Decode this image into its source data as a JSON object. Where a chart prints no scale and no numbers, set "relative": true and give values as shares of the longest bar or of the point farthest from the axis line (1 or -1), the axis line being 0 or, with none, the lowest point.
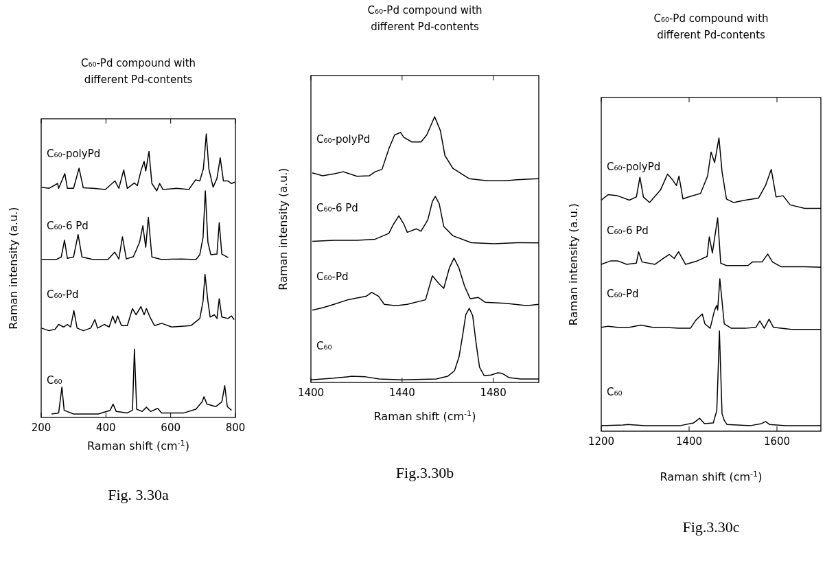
{
  "chart_data": [
    {
      "type": "line",
      "title": "C₆₀-Pd compound with\ndifferent Pd-contents",
      "xlabel": "Raman shift (cm$^{-1}$)",
      "ylabel": "Raman intensity (a.u.)",
      "relative": true,
      "xlim": [
        200,
        800
      ],
      "xticks": [
        200,
        400,
        600,
        800
      ],
      "annotations": [
        "Fig. 3.30a"
      ],
      "series": [
        {
          "name": "C₆₀-polyPd",
          "color": "#000000",
          "x": [
            201,
            224,
            251,
            254,
            273,
            281,
            300,
            317,
            330,
            360,
            398,
            428,
            440,
            455,
            466,
            488,
            497,
            508,
            518,
            523,
            533,
            542,
            557,
            566,
            576,
            618,
            656,
            677,
            690,
            701,
            710,
            718,
            731,
            743,
            753,
            763,
            777,
            788,
            798
          ],
          "values": [
            0.812,
            0.808,
            0.825,
            0.808,
            0.86,
            0.808,
            0.808,
            0.879,
            0.81,
            0.808,
            0.804,
            0.834,
            0.808,
            0.873,
            0.808,
            0.827,
            0.817,
            0.869,
            0.903,
            0.869,
            0.938,
            0.825,
            0.799,
            0.825,
            0.804,
            0.808,
            0.804,
            0.838,
            0.834,
            0.877,
            1.0,
            0.877,
            0.812,
            0.843,
            0.916,
            0.834,
            0.834,
            0.825,
            0.83
          ]
        },
        {
          "name": "C₆₀-6 Pd",
          "color": "#000000",
          "x": [
            201,
            247,
            262,
            272,
            281,
            300,
            314,
            326,
            360,
            406,
            427,
            440,
            451,
            463,
            485,
            504,
            514,
            523,
            531,
            542,
            572,
            633,
            678,
            690,
            700,
            707,
            715,
            724,
            743,
            750,
            758,
            778
          ],
          "values": [
            0.557,
            0.557,
            0.566,
            0.625,
            0.561,
            0.566,
            0.645,
            0.566,
            0.557,
            0.557,
            0.583,
            0.559,
            0.637,
            0.559,
            0.567,
            0.618,
            0.676,
            0.6,
            0.706,
            0.566,
            0.557,
            0.559,
            0.557,
            0.574,
            0.635,
            0.799,
            0.618,
            0.574,
            0.576,
            0.687,
            0.576,
            0.564
          ]
        },
        {
          "name": "C₆₀-Pd",
          "color": "#000000",
          "x": [
            201,
            224,
            243,
            254,
            269,
            281,
            291,
            301,
            311,
            330,
            353,
            366,
            374,
            395,
            410,
            421,
            429,
            436,
            448,
            466,
            482,
            493,
            508,
            518,
            525,
            536,
            550,
            572,
            603,
            663,
            690,
            700,
            706,
            715,
            722,
            735,
            743,
            750,
            758,
            777,
            788,
            796
          ],
          "values": [
            0.315,
            0.306,
            0.311,
            0.328,
            0.319,
            0.328,
            0.319,
            0.377,
            0.315,
            0.306,
            0.315,
            0.345,
            0.315,
            0.328,
            0.319,
            0.358,
            0.332,
            0.358,
            0.324,
            0.324,
            0.384,
            0.362,
            0.391,
            0.362,
            0.384,
            0.354,
            0.324,
            0.332,
            0.319,
            0.324,
            0.349,
            0.41,
            0.505,
            0.41,
            0.354,
            0.362,
            0.349,
            0.419,
            0.354,
            0.349,
            0.358,
            0.345
          ]
        },
        {
          "name": "C₆₀",
          "color": "#000000",
          "x": [
            232,
            254,
            264,
            271,
            300,
            376,
            413,
            422,
            432,
            466,
            482,
            488,
            495,
            512,
            525,
            538,
            560,
            572,
            641,
            678,
            697,
            703,
            712,
            739,
            758,
            767,
            775,
            788
          ],
          "values": [
            0.012,
            0.016,
            0.107,
            0.025,
            0.012,
            0.012,
            0.025,
            0.047,
            0.021,
            0.016,
            0.025,
            0.241,
            0.029,
            0.021,
            0.036,
            0.021,
            0.032,
            0.016,
            0.016,
            0.029,
            0.055,
            0.073,
            0.047,
            0.038,
            0.055,
            0.112,
            0.038,
            0.025
          ]
        }
      ]
    },
    {
      "type": "line",
      "title": "C₆₀-Pd compound with\ndifferent Pd-contents",
      "xlabel": "Raman shift (cm$^{-1}$)",
      "ylabel": "Raman intensity (a.u.)",
      "relative": true,
      "xlim": [
        1400,
        1500
      ],
      "xticks": [
        1400,
        1440,
        1480
      ],
      "annotations": [
        "Fig.3.30b"
      ],
      "series": [
        {
          "name": "C₆₀-polyPd",
          "color": "#000000",
          "x": [
            1400.6,
            1405.1,
            1410.1,
            1414.2,
            1420.2,
            1425.7,
            1428.2,
            1431.2,
            1434.2,
            1436.7,
            1439.3,
            1440.8,
            1444.3,
            1448.3,
            1450.8,
            1454.3,
            1456.8,
            1458.8,
            1462.3,
            1469.4,
            1477.4,
            1485.4,
            1490.5,
            1500
          ],
          "values": [
            0.789,
            0.778,
            0.785,
            0.793,
            0.776,
            0.778,
            0.793,
            0.802,
            0.879,
            0.931,
            0.941,
            0.922,
            0.905,
            0.905,
            0.931,
            1.0,
            0.948,
            0.854,
            0.806,
            0.767,
            0.759,
            0.759,
            0.763,
            0.767
          ]
        },
        {
          "name": "C₆₀-6 Pd",
          "color": "#000000",
          "x": [
            1400.6,
            1410.1,
            1420.2,
            1428.2,
            1434.2,
            1436.2,
            1438.6,
            1440.8,
            1442.3,
            1446.3,
            1448.3,
            1451.3,
            1453.3,
            1454.6,
            1456.3,
            1458.3,
            1462.3,
            1470.4,
            1480.4,
            1490.5,
            1500
          ],
          "values": [
            0.531,
            0.535,
            0.535,
            0.539,
            0.561,
            0.595,
            0.627,
            0.595,
            0.565,
            0.578,
            0.569,
            0.612,
            0.681,
            0.7,
            0.673,
            0.587,
            0.552,
            0.526,
            0.522,
            0.526,
            0.525
          ]
        },
        {
          "name": "C₆₀-Pd",
          "color": "#000000",
          "x": [
            1400.6,
            1405.1,
            1410.1,
            1416.2,
            1420.2,
            1424.2,
            1426.7,
            1429.7,
            1432.2,
            1437.2,
            1442.3,
            1450.3,
            1453.3,
            1456.3,
            1458.3,
            1460.8,
            1462.8,
            1464.9,
            1467.4,
            1469.9,
            1473.4,
            1476.4,
            1485.4,
            1494.5,
            1500
          ],
          "values": [
            0.272,
            0.281,
            0.294,
            0.311,
            0.318,
            0.324,
            0.339,
            0.324,
            0.294,
            0.289,
            0.294,
            0.311,
            0.401,
            0.371,
            0.354,
            0.432,
            0.468,
            0.432,
            0.363,
            0.315,
            0.32,
            0.302,
            0.298,
            0.289,
            0.294
          ]
        },
        {
          "name": "C₆₀",
          "color": "#000000",
          "x": [
            1400,
            1410,
            1418,
            1424,
            1430,
            1440,
            1455,
            1460,
            1463,
            1465,
            1466.5,
            1468,
            1469.5,
            1471,
            1472.5,
            1474,
            1476,
            1479,
            1482,
            1484,
            1487,
            1492,
            1500
          ],
          "values": [
            0.01,
            0.016,
            0.023,
            0.021,
            0.013,
            0.01,
            0.013,
            0.023,
            0.044,
            0.096,
            0.173,
            0.256,
            0.279,
            0.251,
            0.147,
            0.057,
            0.026,
            0.028,
            0.036,
            0.034,
            0.018,
            0.013,
            0.013
          ]
        }
      ]
    },
    {
      "type": "line",
      "title": "C₆₀-Pd compound with\ndifferent Pd-contents",
      "xlabel": "Raman shift (cm$^{-1}$)",
      "ylabel": "Raman intensity (a.u.)",
      "relative": true,
      "xlim": [
        1200,
        1700
      ],
      "xticks": [
        1200,
        1400,
        1600
      ],
      "annotations": [
        "Fig.3.30c"
      ],
      "series": [
        {
          "name": "C₆₀-polyPd",
          "color": "#000000",
          "x": [
            1200,
            1216,
            1237,
            1264,
            1280,
            1288,
            1296,
            1310,
            1335,
            1351,
            1362,
            1371,
            1377,
            1386,
            1399,
            1426,
            1442,
            1450,
            1458,
            1468,
            1475,
            1485,
            1501,
            1528,
            1558,
            1574,
            1587,
            1598,
            1614,
            1630,
            1663,
            1689,
            1700
          ],
          "values": [
            0.788,
            0.807,
            0.803,
            0.788,
            0.799,
            0.866,
            0.799,
            0.78,
            0.823,
            0.877,
            0.858,
            0.838,
            0.87,
            0.792,
            0.799,
            0.811,
            0.87,
            0.952,
            0.916,
            1.0,
            0.885,
            0.792,
            0.78,
            0.788,
            0.795,
            0.838,
            0.893,
            0.799,
            0.803,
            0.772,
            0.76,
            0.76,
            0.76
          ]
        },
        {
          "name": "C₆₀-6 Pd",
          "color": "#000000",
          "x": [
            1200,
            1222,
            1237,
            1258,
            1280,
            1285,
            1293,
            1322,
            1344,
            1355,
            1366,
            1376,
            1392,
            1419,
            1441,
            1446,
            1453,
            1465,
            1472,
            1485,
            1534,
            1544,
            1566,
            1579,
            1590,
            1609,
            1663,
            1700
          ],
          "values": [
            0.569,
            0.581,
            0.581,
            0.569,
            0.573,
            0.612,
            0.577,
            0.569,
            0.592,
            0.603,
            0.589,
            0.612,
            0.569,
            0.581,
            0.596,
            0.663,
            0.608,
            0.728,
            0.573,
            0.565,
            0.565,
            0.577,
            0.577,
            0.604,
            0.577,
            0.561,
            0.561,
            0.559
          ]
        },
        {
          "name": "C₆₀-Pd",
          "color": "#000000",
          "x": [
            1200,
            1216,
            1237,
            1264,
            1290,
            1317,
            1344,
            1376,
            1403,
            1415,
            1430,
            1436,
            1448,
            1458,
            1463,
            1465,
            1470,
            1480,
            1496,
            1528,
            1552,
            1561,
            1571,
            1582,
            1592,
            1633,
            1700
          ],
          "values": [
            0.354,
            0.358,
            0.354,
            0.354,
            0.362,
            0.354,
            0.354,
            0.351,
            0.351,
            0.378,
            0.4,
            0.366,
            0.351,
            0.413,
            0.429,
            0.413,
            0.52,
            0.366,
            0.351,
            0.351,
            0.354,
            0.376,
            0.351,
            0.382,
            0.354,
            0.347,
            0.347
          ]
        },
        {
          "name": "C₆₀",
          "color": "#000000",
          "x": [
            1200,
            1250,
            1260,
            1300,
            1380,
            1410,
            1424,
            1435,
            1455,
            1463,
            1466,
            1469,
            1472,
            1475,
            1480,
            1486,
            1540,
            1565,
            1574,
            1583,
            1620,
            1700
          ],
          "values": [
            0.019,
            0.021,
            0.023,
            0.019,
            0.019,
            0.028,
            0.044,
            0.026,
            0.028,
            0.07,
            0.2,
            0.342,
            0.2,
            0.06,
            0.037,
            0.023,
            0.019,
            0.026,
            0.033,
            0.023,
            0.019,
            0.019
          ]
        }
      ]
    }
  ]
}
